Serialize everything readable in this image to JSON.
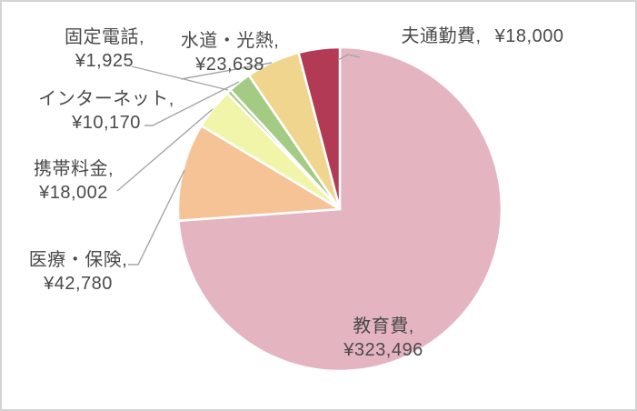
{
  "chart_data": {
    "type": "pie",
    "title": "",
    "legend": "none",
    "direction": "clockwise",
    "start_angle_deg": 0,
    "label_style": "category-name-and-value-with-leader-lines",
    "leader_line_color": "#a6a6a6",
    "label_text_color": "#4a4a4a",
    "slice_border_color": "#ffffff",
    "slices": [
      {
        "name": "教育費",
        "label_line": "教育費,",
        "value": 323496,
        "value_line": "¥323,496",
        "color": "#e4b4c1"
      },
      {
        "name": "医療・保険",
        "label_line": "医療・保険,",
        "value": 42780,
        "value_line": "¥42,780",
        "color": "#f6c397"
      },
      {
        "name": "携帯料金",
        "label_line": "携帯料金,",
        "value": 18002,
        "value_line": "¥18,002",
        "color": "#f1f5a9"
      },
      {
        "name": "固定電話",
        "label_line": "固定電話,",
        "value": 1925,
        "value_line": "¥1,925",
        "color": "#a4cb84"
      },
      {
        "name": "インターネット",
        "label_line": "インターネット,",
        "value": 10170,
        "value_line": "¥10,170",
        "color": "#a4cb84"
      },
      {
        "name": "水道・光熱",
        "label_line": "水道・光熱,",
        "value": 23638,
        "value_line": "¥23,638",
        "color": "#efd58e"
      },
      {
        "name": "夫通勤費",
        "label_line": "夫通勤費,",
        "value": 18000,
        "value_line": "¥18,000",
        "color": "#b23a55"
      }
    ]
  }
}
